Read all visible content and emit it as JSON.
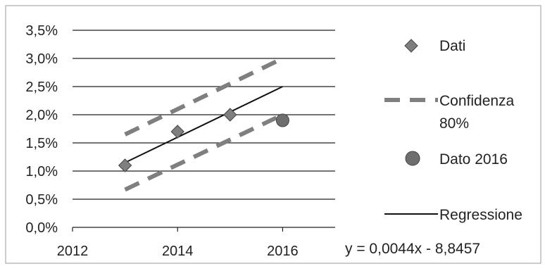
{
  "chart_data": {
    "type": "scatter",
    "x_ticks": [
      "2012",
      "2014",
      "2016"
    ],
    "xlim": [
      2012,
      2017
    ],
    "y_ticks": [
      "0,0%",
      "0,5%",
      "1,0%",
      "1,5%",
      "2,0%",
      "2,5%",
      "3,0%",
      "3,5%"
    ],
    "ylim": [
      0,
      0.035
    ],
    "grid": "horizontal",
    "legend_position": "right",
    "series": [
      {
        "name": "Dati",
        "kind": "marker-diamond",
        "color": "#7f7f7f",
        "x": [
          2013,
          2014,
          2015
        ],
        "y": [
          0.011,
          0.017,
          0.02
        ]
      },
      {
        "name": "Confidenza 80%",
        "kind": "dashed-line",
        "color": "#7f7f7f",
        "segments": [
          {
            "x": [
              2013,
              2016
            ],
            "y": [
              0.0165,
              0.03
            ]
          },
          {
            "x": [
              2013,
              2016
            ],
            "y": [
              0.0067,
              0.02
            ]
          }
        ]
      },
      {
        "name": "Dato 2016",
        "kind": "marker-circle",
        "color": "#6e6e6e",
        "x": [
          2016
        ],
        "y": [
          0.019
        ]
      },
      {
        "name": "Regressione",
        "kind": "solid-line",
        "color": "#111111",
        "x": [
          2013,
          2016
        ],
        "y": [
          0.0115,
          0.025
        ]
      }
    ],
    "annotation": "y = 0,0044x - 8,8457"
  }
}
